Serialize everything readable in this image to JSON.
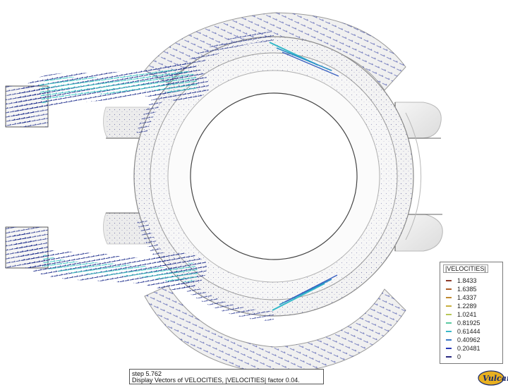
{
  "legend": {
    "title": "|VELOCITIES|",
    "items": [
      {
        "label": "1.8433",
        "color": "#8b3a2a"
      },
      {
        "label": "1.6385",
        "color": "#b0602a"
      },
      {
        "label": "1.4337",
        "color": "#c08a30"
      },
      {
        "label": "1.2289",
        "color": "#c8b040"
      },
      {
        "label": "1.0241",
        "color": "#b8c858"
      },
      {
        "label": "0.81925",
        "color": "#5ac8a0"
      },
      {
        "label": "0.61444",
        "color": "#38b8c8"
      },
      {
        "label": "0.40962",
        "color": "#3a78c8"
      },
      {
        "label": "0.20481",
        "color": "#2a3ab8"
      },
      {
        "label": "0",
        "color": "#2a2a80"
      }
    ]
  },
  "status": {
    "line1": "step 5.762",
    "line2": "Display Vectors of VELOCITIES, |VELOCITIES| factor 0.04."
  },
  "logo": {
    "text": "Vulcan"
  }
}
